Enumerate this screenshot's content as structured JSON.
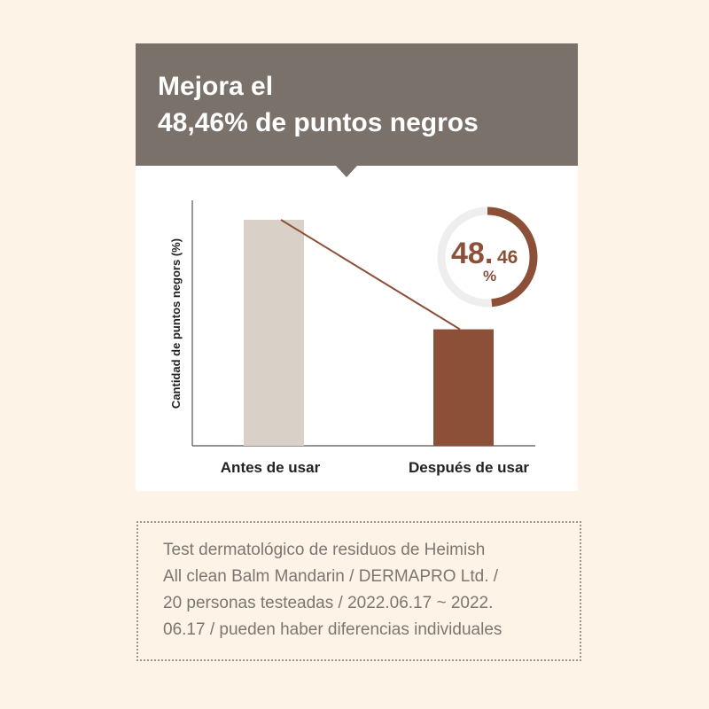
{
  "header": {
    "title_line1": "Mejora el",
    "title_line2": "48,46% de puntos negros"
  },
  "chart_data": {
    "type": "bar",
    "categories": [
      "Antes de usar",
      "Después de usar"
    ],
    "values": [
      100,
      51.54
    ],
    "ylabel": "Cantidad de puntos negors (%)",
    "ylim": [
      0,
      100
    ],
    "grid": false,
    "colors": [
      "#d9d0c7",
      "#8c5038"
    ],
    "trend_line": true,
    "badge": {
      "value_main": "48.",
      "value_decimal": "46",
      "unit": "%",
      "fraction": 0.4846,
      "ring_color": "#8c5038",
      "track_color": "#eeeeee"
    }
  },
  "disclaimer": {
    "lines": [
      "Test dermatológico de residuos de Heimish",
      "All clean Balm Mandarin / DERMAPRO Ltd. /",
      "20 personas testeadas / 2022.06.17 ~ 2022.",
      "06.17 / pueden haber diferencias individuales"
    ]
  }
}
